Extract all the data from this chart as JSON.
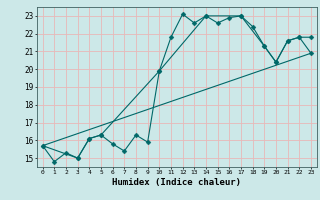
{
  "title": "",
  "xlabel": "Humidex (Indice chaleur)",
  "bg_color": "#cce8e8",
  "grid_color": "#e8b8b8",
  "line_color": "#006868",
  "xlim": [
    -0.5,
    23.5
  ],
  "ylim": [
    14.5,
    23.5
  ],
  "yticks": [
    15,
    16,
    17,
    18,
    19,
    20,
    21,
    22,
    23
  ],
  "xticks": [
    0,
    1,
    2,
    3,
    4,
    5,
    6,
    7,
    8,
    9,
    10,
    11,
    12,
    13,
    14,
    15,
    16,
    17,
    18,
    19,
    20,
    21,
    22,
    23
  ],
  "line1_x": [
    0,
    1,
    2,
    3,
    4,
    5,
    6,
    7,
    8,
    9,
    10,
    11,
    12,
    13,
    14,
    15,
    16,
    17,
    18,
    19,
    20,
    21,
    22,
    23
  ],
  "line1_y": [
    15.7,
    14.8,
    15.3,
    15.0,
    16.1,
    16.3,
    15.8,
    15.4,
    16.3,
    15.9,
    19.9,
    21.8,
    23.1,
    22.6,
    23.0,
    22.6,
    22.9,
    23.0,
    22.4,
    21.3,
    20.4,
    21.6,
    21.8,
    21.8
  ],
  "line2_x": [
    0,
    3,
    4,
    5,
    10,
    14,
    17,
    19,
    20,
    21,
    22,
    23
  ],
  "line2_y": [
    15.7,
    15.0,
    16.1,
    16.3,
    19.9,
    23.0,
    23.0,
    21.3,
    20.4,
    21.6,
    21.8,
    20.9
  ],
  "line3_x": [
    0,
    23
  ],
  "line3_y": [
    15.7,
    20.9
  ],
  "marker_size": 2.5,
  "linewidth": 0.8
}
